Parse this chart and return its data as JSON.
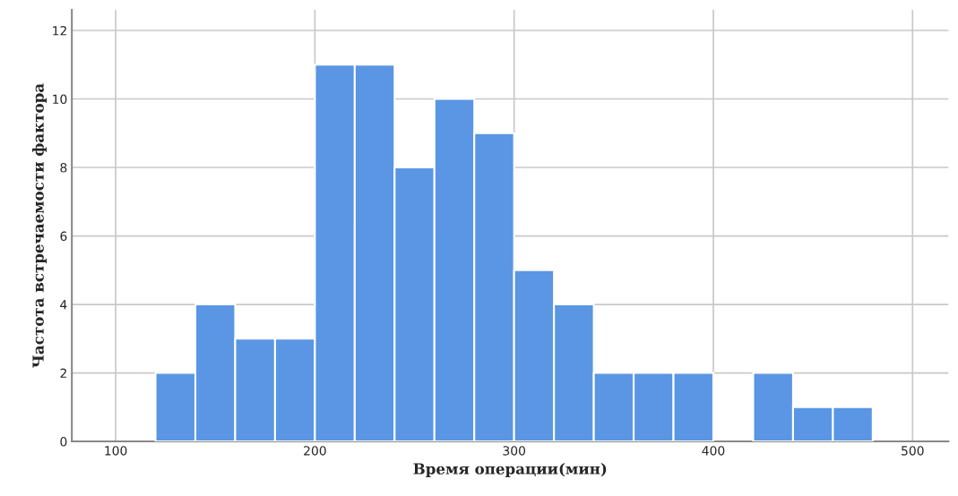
{
  "chart_data": {
    "type": "histogram",
    "xlabel": "Время операции(мин)",
    "ylabel": "Частота встречаемости фактора",
    "bins": [
      120,
      140,
      160,
      180,
      200,
      220,
      240,
      260,
      280,
      300,
      320,
      340,
      360,
      380,
      400,
      420,
      440,
      460,
      480
    ],
    "values": [
      2,
      4,
      3,
      3,
      11,
      11,
      8,
      10,
      9,
      5,
      4,
      2,
      2,
      2,
      0,
      2,
      1,
      1
    ],
    "color": "#5a96e3",
    "xlim": [
      78,
      518
    ],
    "ylim": [
      0,
      12.6
    ],
    "xticks": [
      100,
      200,
      300,
      400,
      500
    ],
    "yticks": [
      0,
      2,
      4,
      6,
      8,
      10,
      12
    ],
    "grid": true,
    "legend": false
  }
}
